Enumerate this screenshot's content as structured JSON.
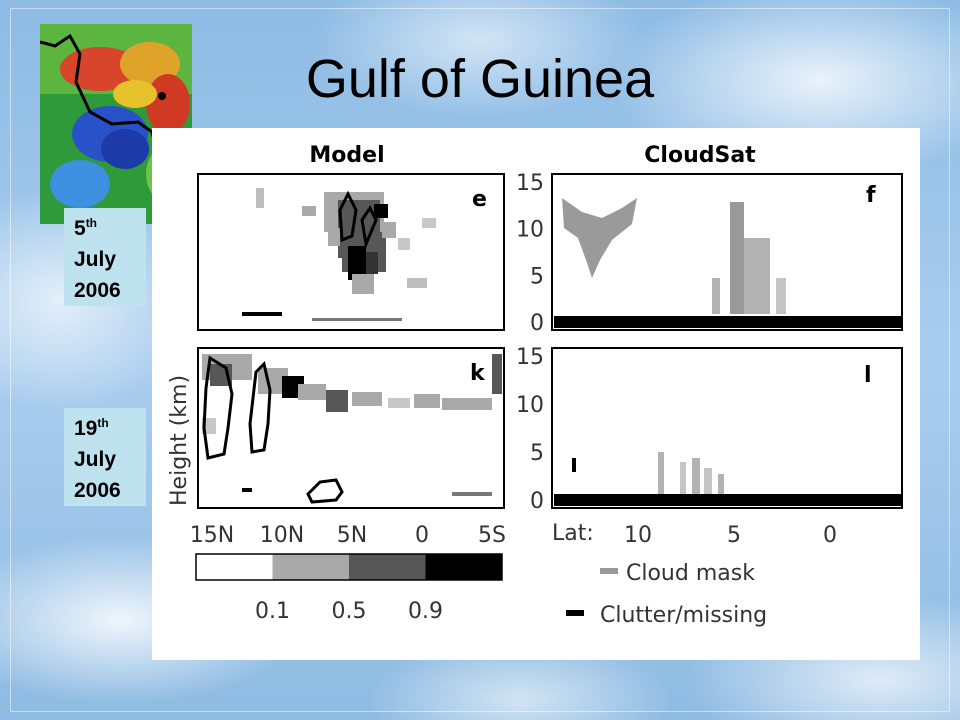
{
  "slide": {
    "title": "Gulf of Guinea",
    "dates": [
      {
        "day": "5",
        "suffix": "th",
        "month": "July",
        "year": "2006"
      },
      {
        "day": "19",
        "suffix": "th",
        "month": "July",
        "year": "2006"
      }
    ]
  },
  "chart_data": {
    "type": "heatmap",
    "column_titles": [
      "Model",
      "CloudSat"
    ],
    "ylabel": "Height (km)",
    "yticks": [
      "0",
      "5",
      "10",
      "15"
    ],
    "ylim": [
      0,
      15
    ],
    "model_xticks": [
      "15N",
      "10N",
      "5N",
      "0",
      "5S"
    ],
    "cloudsat_xlabel": "Lat:",
    "cloudsat_xticks": [
      "10",
      "5",
      "0"
    ],
    "panel_letters": [
      "e",
      "f",
      "k",
      "l"
    ],
    "colorbar": {
      "ticks": [
        "0.1",
        "0.5",
        "0.9"
      ],
      "colors": [
        "#ffffff",
        "#a9a9a9",
        "#575757",
        "#000000"
      ]
    },
    "legend": [
      {
        "label": "Cloud mask",
        "color": "#9a9a9a"
      },
      {
        "label": "Clutter/missing",
        "color": "#000000"
      }
    ]
  }
}
